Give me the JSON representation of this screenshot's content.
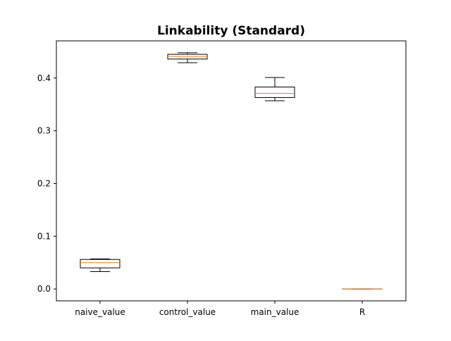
{
  "chart_data": {
    "type": "boxplot",
    "title": "Linkability (Standard)",
    "xlabel": "",
    "ylabel": "",
    "categories": [
      "naive_value",
      "control_value",
      "main_value",
      "R"
    ],
    "boxes": [
      {
        "category": "naive_value",
        "whislo": 0.033,
        "q1": 0.04,
        "med": 0.05,
        "q3": 0.056,
        "whishi": 0.057
      },
      {
        "category": "control_value",
        "whislo": 0.429,
        "q1": 0.436,
        "med": 0.441,
        "q3": 0.445,
        "whishi": 0.448
      },
      {
        "category": "main_value",
        "whislo": 0.357,
        "q1": 0.363,
        "med": 0.371,
        "q3": 0.383,
        "whishi": 0.401
      },
      {
        "category": "R",
        "whislo": 0.0,
        "q1": 0.0,
        "med": 0.0,
        "q3": 0.0,
        "whishi": 0.0
      }
    ],
    "ylim": [
      -0.0225,
      0.4705
    ],
    "yticks": [
      0.0,
      0.1,
      0.2,
      0.3,
      0.4
    ],
    "ytick_labels": [
      "0.0",
      "0.1",
      "0.2",
      "0.3",
      "0.4"
    ],
    "grid": false,
    "colors": {
      "box": "#000000",
      "median": "#ff7f0e",
      "whisker": "#000000"
    }
  }
}
